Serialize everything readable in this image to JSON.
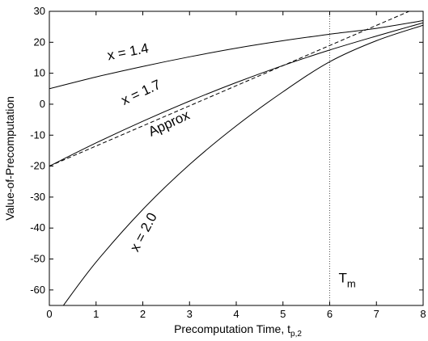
{
  "chart_data": {
    "type": "line",
    "xlabel": "Precomputation Time, t",
    "xlabel_sub": "p,2",
    "ylabel": "Value-of-Precomputation",
    "xlim": [
      0,
      8
    ],
    "ylim": [
      -65,
      30
    ],
    "xticks": [
      0,
      1,
      2,
      3,
      4,
      5,
      6,
      7,
      8
    ],
    "yticks": [
      -60,
      -50,
      -40,
      -30,
      -20,
      -10,
      0,
      10,
      20,
      30
    ],
    "grid": false,
    "legend": "none",
    "series": [
      {
        "label": "x = 1.4",
        "style": "solid",
        "color": "#000000",
        "x": [
          0,
          1,
          2,
          3,
          4,
          5,
          6,
          7,
          8
        ],
        "y": [
          5,
          8.8,
          12.2,
          15.3,
          18.1,
          20.5,
          22.6,
          24.5,
          27
        ]
      },
      {
        "label": "x = 1.7",
        "style": "solid",
        "color": "#000000",
        "x": [
          0,
          1,
          2,
          3,
          4,
          5,
          6,
          7,
          8
        ],
        "y": [
          -20,
          -12.5,
          -5.5,
          1,
          7,
          12.5,
          17.5,
          22,
          26.3
        ]
      },
      {
        "label": "Approx",
        "style": "dashed",
        "color": "#000000",
        "x": [
          0,
          7.7
        ],
        "y": [
          -20,
          30
        ]
      },
      {
        "label": "x = 2.0",
        "style": "solid",
        "color": "#000000",
        "x": [
          0.3,
          1,
          2,
          3,
          4,
          5,
          6,
          7,
          8
        ],
        "y": [
          -65,
          -51,
          -34,
          -19.5,
          -7,
          4,
          13.7,
          20.5,
          25.5
        ]
      }
    ],
    "vline": {
      "x": 6,
      "style": "dotted",
      "label": "T",
      "label_sub": "m"
    },
    "annotations": [
      {
        "text": "x = 1.4",
        "x": 1.7,
        "y": 15.5,
        "angle": -11
      },
      {
        "text": "x = 1.7",
        "x": 2.0,
        "y": 2.5,
        "angle": -25
      },
      {
        "text": "Approx",
        "x": 2.6,
        "y": -7.5,
        "angle": -25
      },
      {
        "text": "x = 2.0",
        "x": 2.1,
        "y": -42,
        "angle": -62
      }
    ]
  }
}
